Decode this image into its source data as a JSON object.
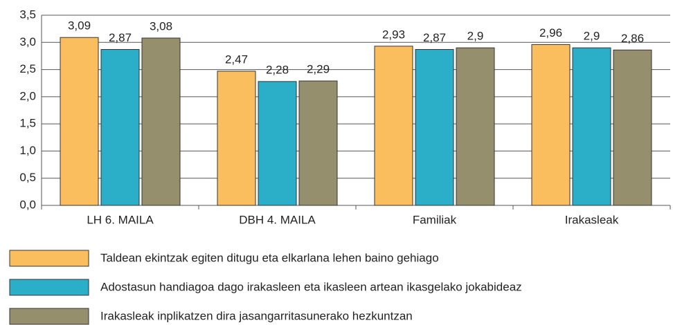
{
  "chart_data": {
    "type": "bar",
    "categories": [
      "LH 6. MAILA",
      "DBH 4. MAILA",
      "Familiak",
      "Irakasleak"
    ],
    "series": [
      {
        "name": "Taldean ekintzak egiten ditugu eta elkarlana lehen baino gehiago",
        "color": "#fbbe5e",
        "values": [
          3.09,
          2.47,
          2.93,
          2.96
        ],
        "value_labels": [
          "3,09",
          "2,47",
          "2,93",
          "2,96"
        ]
      },
      {
        "name": "Adostasun handiagoa dago irakasleen eta ikasleen artean ikasgelako jokabideaz",
        "color": "#2bafc8",
        "values": [
          2.87,
          2.28,
          2.87,
          2.9
        ],
        "value_labels": [
          "2,87",
          "2,28",
          "2,87",
          "2,9"
        ]
      },
      {
        "name": "Irakasleak inplikatzen dira jasangarritasunerako hezkuntzan",
        "color": "#968f6e",
        "values": [
          3.08,
          2.29,
          2.9,
          2.86
        ],
        "value_labels": [
          "3,08",
          "2,29",
          "2,9",
          "2,86"
        ]
      }
    ],
    "ylim": [
      0,
      3.5
    ],
    "yticks": [
      {
        "value": 0,
        "label": "0,0"
      },
      {
        "value": 0.5,
        "label": "0,5"
      },
      {
        "value": 1,
        "label": "1,0"
      },
      {
        "value": 1.5,
        "label": "1,5"
      },
      {
        "value": 2,
        "label": "2,0"
      },
      {
        "value": 2.5,
        "label": "2,5"
      },
      {
        "value": 3,
        "label": "3,0"
      },
      {
        "value": 3.5,
        "label": "3,5"
      }
    ],
    "grid": true
  }
}
